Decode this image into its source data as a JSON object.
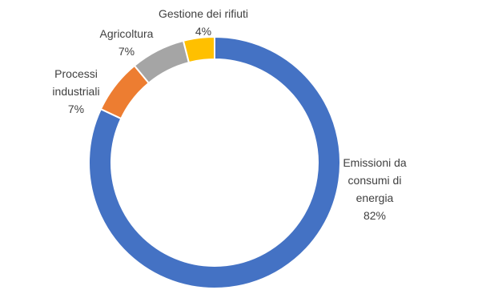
{
  "chart_data": {
    "type": "donut",
    "categories": [
      "Emissioni da consumi di energia",
      "Processi industriali",
      "Agricoltura",
      "Gestione dei rifiuti"
    ],
    "values": [
      82,
      7,
      7,
      4
    ],
    "value_labels": [
      "82%",
      "7%",
      "7%",
      "4%"
    ],
    "colors": [
      "#4472c4",
      "#ed7d31",
      "#a5a5a5",
      "#ffc000"
    ]
  }
}
